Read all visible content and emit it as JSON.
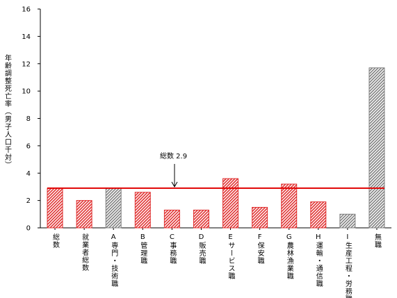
{
  "chart_data": {
    "type": "bar",
    "y_label": "年齢調整死亡率（男子人口千対）",
    "categories": [
      "総数",
      "就業者総数",
      "A専門・技術職",
      "B管理職",
      "C事務職",
      "D販売職",
      "Eサービス職",
      "F保安職",
      "G農林漁業職",
      "H運輸・通信職",
      "I生産工程・労務職",
      "無職"
    ],
    "values": [
      2.9,
      2.0,
      2.9,
      2.6,
      1.3,
      1.3,
      3.6,
      1.5,
      3.2,
      1.9,
      1.0,
      11.7
    ],
    "colors": [
      "#e03030",
      "#e03030",
      "#808080",
      "#e03030",
      "#e03030",
      "#e03030",
      "#e03030",
      "#e03030",
      "#e03030",
      "#e03030",
      "#808080",
      "#808080"
    ],
    "ylim": [
      0,
      16
    ],
    "yticks": [
      0,
      2,
      4,
      6,
      8,
      10,
      12,
      14,
      16
    ],
    "grid": false,
    "reference_line": {
      "value": 2.9,
      "label": "総数 2.9",
      "color": "#e00000"
    }
  }
}
